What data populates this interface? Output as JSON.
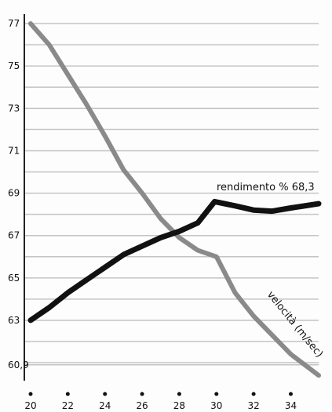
{
  "chart_data": {
    "type": "line",
    "title": "",
    "xlabel": "",
    "ylabel": "",
    "xlim": [
      20,
      35.5
    ],
    "ylim": [
      60.3,
      77.3
    ],
    "grid": true,
    "x_ticks": [
      20,
      22,
      24,
      26,
      28,
      30,
      32,
      34
    ],
    "y_ticks": [
      {
        "value": 77,
        "label": "77"
      },
      {
        "value": 75,
        "label": "75"
      },
      {
        "value": 73,
        "label": "73"
      },
      {
        "value": 71,
        "label": "71"
      },
      {
        "value": 69,
        "label": "69"
      },
      {
        "value": 67,
        "label": "67"
      },
      {
        "value": 65,
        "label": "65"
      },
      {
        "value": 63,
        "label": "63"
      },
      {
        "value": 60.9,
        "label": "60,9"
      }
    ],
    "series": [
      {
        "name": "velocità (m/sec)",
        "color": "#8a8a8a",
        "x": [
          20,
          21,
          22,
          23,
          24,
          25,
          26,
          27,
          28,
          29,
          30,
          31,
          32,
          33,
          34,
          35.5
        ],
        "y": [
          77,
          76,
          74.6,
          73.2,
          71.7,
          70.1,
          69.0,
          67.8,
          66.9,
          66.3,
          66.0,
          64.3,
          63.2,
          62.3,
          61.4,
          60.4
        ]
      },
      {
        "name": "rendimento %",
        "color": "#111111",
        "x": [
          20,
          21,
          22,
          23,
          24,
          25,
          26,
          27,
          28,
          29,
          29.9,
          31,
          32,
          33,
          34,
          35.5
        ],
        "y": [
          63.0,
          63.6,
          64.3,
          64.9,
          65.5,
          66.1,
          66.5,
          66.9,
          67.2,
          67.6,
          68.6,
          68.4,
          68.2,
          68.15,
          68.3,
          68.5
        ]
      }
    ],
    "annotations": [
      {
        "text": "rendimento  % 68,3",
        "series": 1
      },
      {
        "text": "velocità  (m/sec)",
        "series": 0
      }
    ]
  }
}
